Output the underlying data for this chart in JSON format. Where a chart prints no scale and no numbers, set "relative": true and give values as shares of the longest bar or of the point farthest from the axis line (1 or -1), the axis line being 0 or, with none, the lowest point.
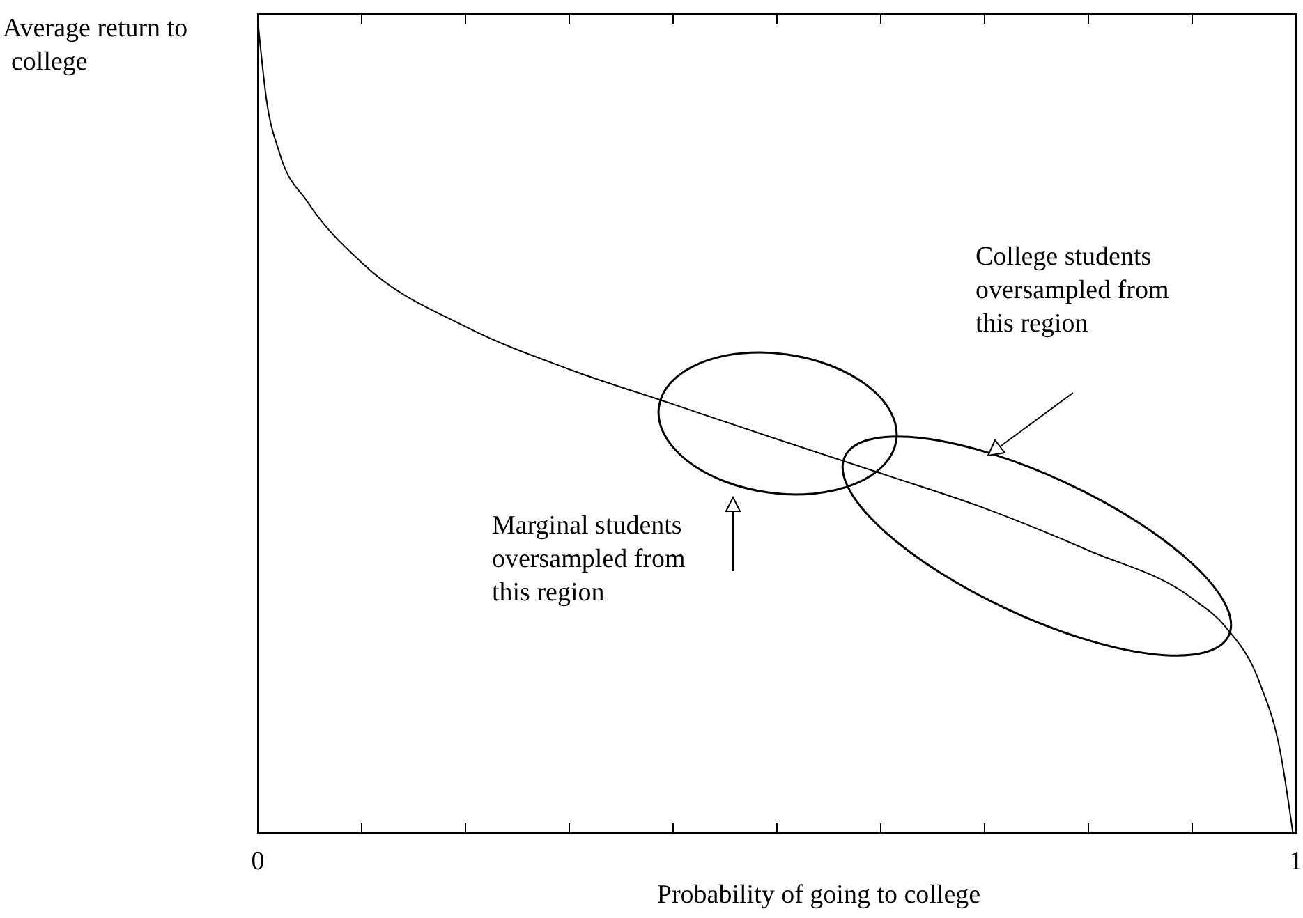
{
  "chart_data": {
    "type": "line",
    "relative": true,
    "xlabel": "Probability of going to college",
    "ylabel": "Average return to college",
    "xlim": [
      0,
      1
    ],
    "xticks": [
      0,
      {
        "value": 0.1,
        "label": null
      },
      {
        "value": 0.2,
        "label": null
      },
      {
        "value": 0.3,
        "label": null
      },
      {
        "value": 0.4,
        "label": null
      },
      {
        "value": 0.5,
        "label": null
      },
      {
        "value": 0.6,
        "label": null
      },
      {
        "value": 0.7,
        "label": null
      },
      {
        "value": 0.8,
        "label": null
      },
      {
        "value": 0.9,
        "label": null
      },
      1
    ],
    "series": [
      {
        "color": "#000000",
        "x": [
          0,
          0.008,
          0.021,
          0.048,
          0.102,
          0.201,
          0.3,
          0.4,
          0.5,
          0.6,
          0.7,
          0.8,
          0.901,
          0.932,
          0.965,
          0.985,
          0.997
        ],
        "values": [
          1,
          0.906,
          0.837,
          0.777,
          0.7,
          0.623,
          0.571,
          0.528,
          0.485,
          0.443,
          0.4,
          0.348,
          0.288,
          0.254,
          0.185,
          0.099,
          0
        ]
      }
    ],
    "annotations": [
      "College students\noversampled from\nthis region",
      "Marginal students\noversampled from\nthis region"
    ]
  }
}
